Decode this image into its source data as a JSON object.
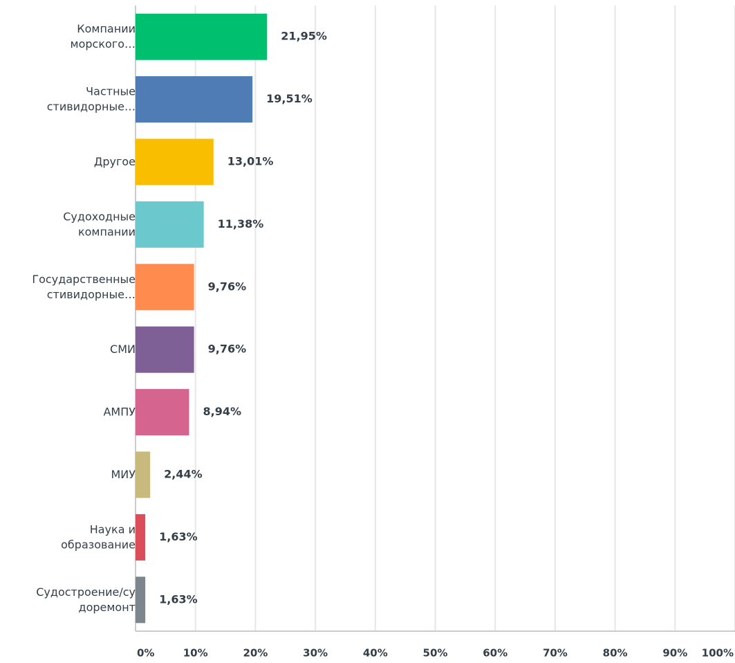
{
  "chart_data": {
    "type": "bar",
    "orientation": "horizontal",
    "categories": [
      "Компании\nморского…",
      "Частные\nстивидорные…",
      "Другое",
      "Судоходные\nкомпании",
      "Государственные\nстивидорные…",
      "СМИ",
      "АМПУ",
      "МИУ",
      "Наука и\nобразование",
      "Судостроение/су\nдоремонт"
    ],
    "values": [
      21.95,
      19.51,
      13.01,
      11.38,
      9.76,
      9.76,
      8.94,
      2.44,
      1.63,
      1.63
    ],
    "value_labels": [
      "21,95%",
      "19,51%",
      "13,01%",
      "11,38%",
      "9,76%",
      "9,76%",
      "8,94%",
      "2,44%",
      "1,63%",
      "1,63%"
    ],
    "colors": [
      "#00bf6f",
      "#507cb6",
      "#f9be00",
      "#6bc8cd",
      "#ff8b4f",
      "#7f6096",
      "#d5658f",
      "#c8b97c",
      "#dc4d5a",
      "#7b868d"
    ],
    "xlim": [
      0,
      100
    ],
    "xticks": [
      {
        "value": 0,
        "label": "0%"
      },
      {
        "value": 10,
        "label": "10%"
      },
      {
        "value": 20,
        "label": "20%"
      },
      {
        "value": 30,
        "label": "30%"
      },
      {
        "value": 40,
        "label": "40%"
      },
      {
        "value": 50,
        "label": "50%"
      },
      {
        "value": 60,
        "label": "60%"
      },
      {
        "value": 70,
        "label": "70%"
      },
      {
        "value": 80,
        "label": "80%"
      },
      {
        "value": 90,
        "label": "90%"
      },
      {
        "value": 100,
        "label": "100%"
      }
    ],
    "grid": true
  }
}
